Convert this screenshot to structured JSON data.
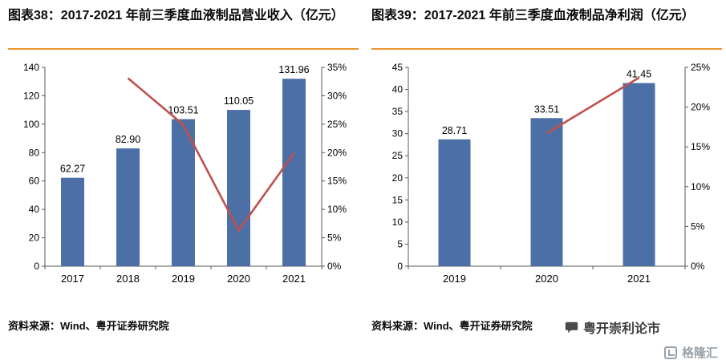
{
  "colors": {
    "bar": "#4C6FA5",
    "line": "#C0504D",
    "divider": "#E8962C",
    "axis": "#595959",
    "text": "#000000"
  },
  "chart_data": [
    {
      "id": "revenue-chart",
      "type": "bar",
      "title": "图表38：2017-2021 年前三季度血液制品营业收入（亿元）",
      "categories": [
        "2017",
        "2018",
        "2019",
        "2020",
        "2021"
      ],
      "series": [
        {
          "type": "bar",
          "axis": "left",
          "values": [
            62.27,
            82.9,
            103.51,
            110.05,
            131.96
          ],
          "labels": [
            "62.27",
            "82.90",
            "103.51",
            "110.05",
            "131.96"
          ]
        },
        {
          "type": "line",
          "axis": "right",
          "values": [
            null,
            33.1,
            24.9,
            6.3,
            19.9
          ]
        }
      ],
      "left_axis": {
        "min": 0,
        "max": 140,
        "step": 20,
        "tick_labels": [
          "0",
          "20",
          "40",
          "60",
          "80",
          "100",
          "120",
          "140"
        ]
      },
      "right_axis": {
        "min": 0,
        "max": 35,
        "step": 5,
        "suffix": "%",
        "tick_labels": [
          "0%",
          "5%",
          "10%",
          "15%",
          "20%",
          "25%",
          "30%",
          "35%"
        ]
      },
      "grid": false,
      "legend": "none",
      "source": "资料来源：Wind、粤开证券研究院"
    },
    {
      "id": "profit-chart",
      "type": "bar",
      "title": "图表39：2017-2021 年前三季度血液制品净利润（亿元）",
      "categories": [
        "2019",
        "2020",
        "2021"
      ],
      "series": [
        {
          "type": "bar",
          "axis": "left",
          "values": [
            28.71,
            33.51,
            41.45
          ],
          "labels": [
            "28.71",
            "33.51",
            "41.45"
          ]
        },
        {
          "type": "line",
          "axis": "right",
          "values": [
            null,
            16.7,
            23.7
          ]
        }
      ],
      "left_axis": {
        "min": 0,
        "max": 45,
        "step": 5,
        "tick_labels": [
          "0",
          "5",
          "10",
          "15",
          "20",
          "25",
          "30",
          "35",
          "40",
          "45"
        ]
      },
      "right_axis": {
        "min": 0,
        "max": 25,
        "step": 5,
        "suffix": "%",
        "tick_labels": [
          "0%",
          "5%",
          "10%",
          "15%",
          "20%",
          "25%"
        ]
      },
      "grid": false,
      "legend": "none",
      "source": "资料来源：Wind、粤开证券研究院"
    }
  ],
  "footer": {
    "wechat_account": "粤开崇利论市",
    "brand": "格隆汇"
  }
}
